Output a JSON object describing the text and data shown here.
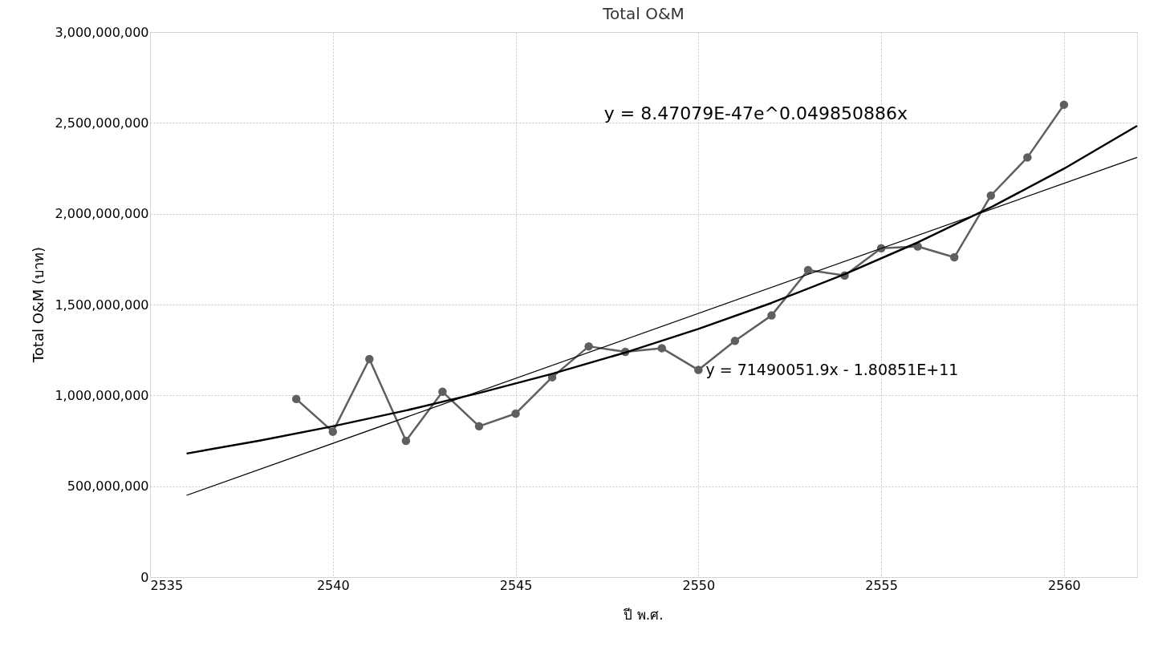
{
  "chart_data": {
    "type": "line",
    "title": "Total O&M",
    "xlabel": "ปี พ.ศ.",
    "ylabel": "Total O&M (บาท)",
    "xlim": [
      2535,
      2562
    ],
    "xticks": [
      2535,
      2540,
      2545,
      2550,
      2555,
      2560
    ],
    "ylim": [
      0,
      3000000000
    ],
    "yticks": [
      0,
      {
        "value": 500000000,
        "label": "500,000,000"
      },
      {
        "value": 1000000000,
        "label": "1,000,000,000"
      },
      {
        "value": 1500000000,
        "label": "1,500,000,000"
      },
      {
        "value": 2000000000,
        "label": "2,000,000,000"
      },
      {
        "value": 2500000000,
        "label": "2,500,000,000"
      },
      {
        "value": 3000000000,
        "label": "3,000,000,000"
      }
    ],
    "grid": true,
    "line_style": "solid",
    "series": [
      {
        "color": "#5f5f5f",
        "marker": "circle",
        "x": [
          2539,
          2540,
          2541,
          2542,
          2543,
          2544,
          2545,
          2546,
          2547,
          2548,
          2549,
          2550,
          2551,
          2552,
          2553,
          2554,
          2555,
          2556,
          2557,
          2558,
          2559,
          2560
        ],
        "values": [
          980000000,
          800000000,
          1200000000,
          750000000,
          1020000000,
          830000000,
          900000000,
          1100000000,
          1270000000,
          1240000000,
          1260000000,
          1140000000,
          1300000000,
          1440000000,
          1690000000,
          1660000000,
          1810000000,
          1820000000,
          1760000000,
          2100000000,
          2310000000,
          2600000000
        ]
      },
      {
        "color": "#000000",
        "marker": "none",
        "x": [
          2536,
          2562
        ],
        "values": [
          450000000,
          2310000000
        ]
      },
      {
        "color": "#000000",
        "marker": "none",
        "x": [
          2536,
          2538,
          2540,
          2542,
          2544,
          2546,
          2548,
          2550,
          2552,
          2554,
          2556,
          2558,
          2560,
          2562
        ],
        "values": [
          680000000,
          751000000,
          830000000,
          917000000,
          1013000000,
          1119000000,
          1236000000,
          1366000000,
          1509000000,
          1667000000,
          1842000000,
          2035000000,
          2248000000,
          2484000000
        ]
      }
    ],
    "annotations": [
      "y = 8.47079E-47e^0.049850886x",
      {
        "text": "y = 71490051.9x - 1.80851E+11",
        "x": 2550.2,
        "y": 1140000000
      }
    ]
  }
}
